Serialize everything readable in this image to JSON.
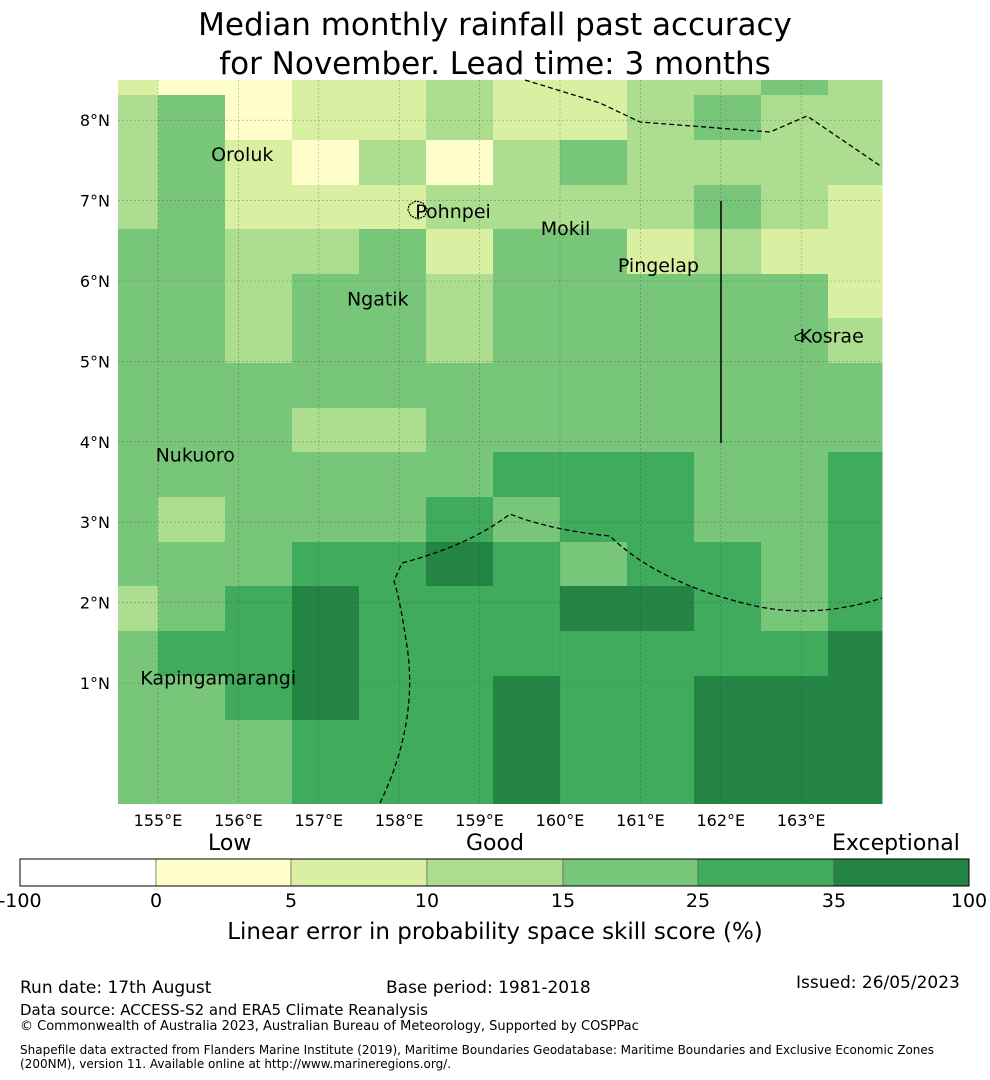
{
  "title": {
    "line1": "Median monthly rainfall past accuracy",
    "line2": "for November. Lead time: 3 months"
  },
  "map": {
    "lon_ticks": [
      "155°E",
      "156°E",
      "157°E",
      "158°E",
      "159°E",
      "160°E",
      "161°E",
      "162°E",
      "163°E"
    ],
    "lat_ticks": [
      "8°N",
      "7°N",
      "6°N",
      "5°N",
      "4°N",
      "3°N",
      "2°N",
      "1°N"
    ],
    "grid_note_classes": "values are colorbar class indices 1-6",
    "grid": [
      [
        2,
        1,
        1,
        2,
        2,
        3,
        2,
        2,
        3,
        3,
        4,
        3
      ],
      [
        3,
        4,
        1,
        2,
        2,
        3,
        2,
        2,
        3,
        4,
        3,
        3
      ],
      [
        3,
        4,
        2,
        1,
        3,
        1,
        3,
        4,
        3,
        3,
        3,
        3
      ],
      [
        3,
        4,
        2,
        2,
        2,
        3,
        3,
        3,
        3,
        4,
        3,
        2
      ],
      [
        4,
        4,
        3,
        3,
        4,
        2,
        4,
        4,
        2,
        3,
        2,
        2
      ],
      [
        4,
        4,
        3,
        4,
        4,
        3,
        4,
        4,
        4,
        4,
        4,
        2
      ],
      [
        4,
        4,
        3,
        4,
        4,
        3,
        4,
        4,
        4,
        4,
        4,
        3
      ],
      [
        4,
        4,
        4,
        4,
        4,
        4,
        4,
        4,
        4,
        4,
        4,
        4
      ],
      [
        4,
        4,
        4,
        3,
        3,
        4,
        4,
        4,
        4,
        4,
        4,
        4
      ],
      [
        4,
        4,
        4,
        4,
        4,
        4,
        5,
        5,
        5,
        4,
        4,
        5
      ],
      [
        4,
        3,
        4,
        4,
        4,
        5,
        4,
        5,
        5,
        4,
        4,
        5
      ],
      [
        4,
        4,
        4,
        5,
        5,
        6,
        5,
        4,
        5,
        5,
        4,
        5
      ],
      [
        3,
        4,
        5,
        6,
        5,
        5,
        5,
        6,
        6,
        5,
        4,
        5
      ],
      [
        4,
        5,
        5,
        6,
        5,
        5,
        5,
        5,
        5,
        5,
        5,
        6
      ],
      [
        4,
        4,
        5,
        6,
        5,
        5,
        6,
        5,
        5,
        6,
        6,
        6
      ],
      [
        4,
        4,
        4,
        5,
        5,
        5,
        6,
        5,
        5,
        6,
        6,
        6
      ]
    ],
    "places": [
      {
        "name": "Oroluk",
        "lon": 155.66,
        "lat": 7.58
      },
      {
        "name": "Pohnpei",
        "lon": 158.2,
        "lat": 6.87
      },
      {
        "name": "Mokil",
        "lon": 159.76,
        "lat": 6.66
      },
      {
        "name": "Pingelap",
        "lon": 160.72,
        "lat": 6.2
      },
      {
        "name": "Ngatik",
        "lon": 157.35,
        "lat": 5.78
      },
      {
        "name": "Kosrae",
        "lon": 162.98,
        "lat": 5.32
      },
      {
        "name": "Nukuoro",
        "lon": 154.97,
        "lat": 3.84
      },
      {
        "name": "Kapingamarangi",
        "lon": 154.78,
        "lat": 1.07
      }
    ]
  },
  "colorbar": {
    "categories": [
      "Low",
      "Good",
      "Exceptional"
    ],
    "ticks": [
      "-100",
      "0",
      "5",
      "10",
      "15",
      "25",
      "35",
      "100"
    ],
    "colors": [
      "#ffffff",
      "#ffffcc",
      "#d9f0a3",
      "#addd8e",
      "#78c679",
      "#41ab5d",
      "#238443"
    ],
    "label": "Linear error in probability space skill score (%)"
  },
  "footer": {
    "run_date": "Run date: 17th August",
    "base_period": "Base period: 1981-2018",
    "issued": "Issued: 26/05/2023",
    "data_source": "Data source: ACCESS-S2 and ERA5 Climate Reanalysis",
    "copyright": "© Commonwealth of Australia 2023, Australian Bureau of Meteorology, Supported by COSPPac",
    "shapefile_line1": "Shapefile data extracted from Flanders Marine Institute (2019), Maritime Boundaries Geodatabase: Maritime Boundaries and Exclusive Economic Zones",
    "shapefile_line2": "(200NM), version 11. Available online at http://www.marineregions.org/."
  }
}
